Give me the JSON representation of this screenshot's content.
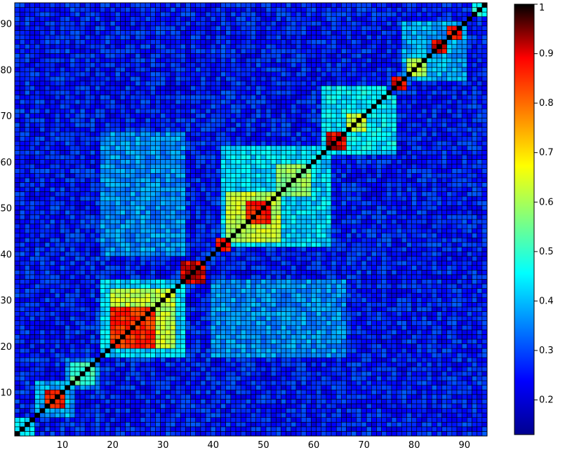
{
  "chart_data": {
    "type": "heatmap",
    "n": 94,
    "x_ticks": [
      10,
      20,
      30,
      40,
      50,
      60,
      70,
      80,
      90
    ],
    "y_ticks": [
      10,
      20,
      30,
      40,
      50,
      60,
      70,
      80,
      90
    ],
    "xlim": [
      1,
      94
    ],
    "ylim": [
      1,
      94
    ],
    "y_origin": "bottom",
    "color_range": [
      0.13,
      1
    ],
    "colorbar_ticks": [
      0.2,
      0.3,
      0.4,
      0.5,
      0.6,
      0.7,
      0.8,
      0.9,
      1
    ],
    "colormap": "jet",
    "grid": true,
    "cell_edge_color": "#000000",
    "background_level": 0.26,
    "diagonal_value": 1.0,
    "blocks": [
      {
        "range": [
          1,
          4
        ],
        "value": 0.45
      },
      {
        "range": [
          7,
          10
        ],
        "value": 0.88
      },
      {
        "range": [
          12,
          16
        ],
        "value": 0.52
      },
      {
        "range": [
          20,
          32
        ],
        "value": 0.62
      },
      {
        "range": [
          20,
          28
        ],
        "value": 0.85
      },
      {
        "range": [
          34,
          38
        ],
        "value": 0.9
      },
      {
        "range": [
          41,
          43
        ],
        "value": 0.88
      },
      {
        "range": [
          43,
          53
        ],
        "value": 0.62
      },
      {
        "range": [
          47,
          51
        ],
        "value": 0.88
      },
      {
        "range": [
          53,
          59
        ],
        "value": 0.58
      },
      {
        "range": [
          63,
          66
        ],
        "value": 0.9
      },
      {
        "range": [
          67,
          70
        ],
        "value": 0.62
      },
      {
        "range": [
          76,
          78
        ],
        "value": 0.88
      },
      {
        "range": [
          79,
          82
        ],
        "value": 0.62
      },
      {
        "range": [
          84,
          86
        ],
        "value": 0.9
      },
      {
        "range": [
          87,
          89
        ],
        "value": 0.88
      },
      {
        "range": [
          92,
          94
        ],
        "value": 0.48
      }
    ],
    "rect_regions": [
      {
        "x": [
          18,
          34
        ],
        "y": [
          18,
          34
        ],
        "value": 0.42
      },
      {
        "x": [
          18,
          34
        ],
        "y": [
          40,
          66
        ],
        "value": 0.36
      },
      {
        "x": [
          40,
          66
        ],
        "y": [
          18,
          34
        ],
        "value": 0.36
      },
      {
        "x": [
          42,
          63
        ],
        "y": [
          42,
          63
        ],
        "value": 0.42
      },
      {
        "x": [
          62,
          74
        ],
        "y": [
          62,
          76
        ],
        "value": 0.44
      },
      {
        "x": [
          62,
          76
        ],
        "y": [
          62,
          74
        ],
        "value": 0.44
      },
      {
        "x": [
          78,
          90
        ],
        "y": [
          78,
          90
        ],
        "value": 0.38
      },
      {
        "x": [
          11,
          17
        ],
        "y": [
          11,
          17
        ],
        "value": 0.34
      },
      {
        "x": [
          5,
          12
        ],
        "y": [
          5,
          12
        ],
        "value": 0.38
      }
    ]
  }
}
